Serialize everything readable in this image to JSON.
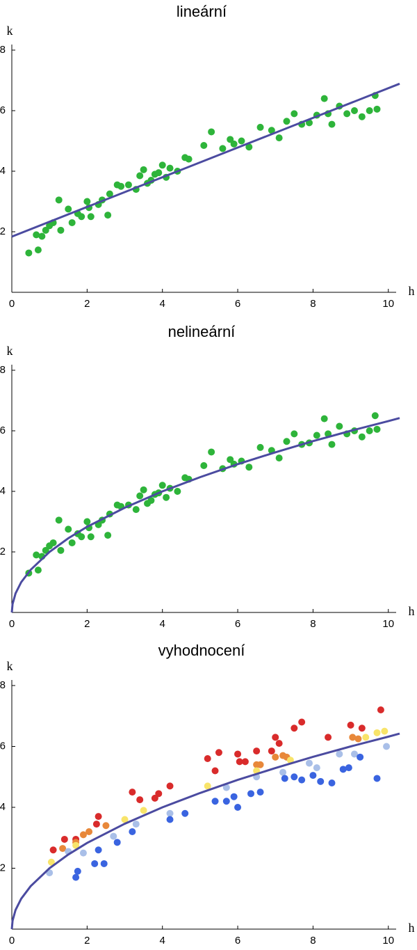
{
  "chart_data": [
    {
      "type": "scatter",
      "title": "lineární",
      "xlabel": "h",
      "ylabel": "k",
      "xlim": [
        0,
        10.3
      ],
      "ylim": [
        0,
        8
      ],
      "xticks": [
        0,
        2,
        4,
        6,
        8,
        10
      ],
      "yticks": [
        2,
        4,
        6,
        8
      ],
      "series": [
        {
          "type": "scatter",
          "color": "#2eb43a",
          "x": [
            0.45,
            0.65,
            0.7,
            0.8,
            0.9,
            1.0,
            1.1,
            1.25,
            1.3,
            1.5,
            1.6,
            1.75,
            1.85,
            2.0,
            2.05,
            2.1,
            2.3,
            2.4,
            2.55,
            2.6,
            2.8,
            2.9,
            3.1,
            3.3,
            3.4,
            3.5,
            3.6,
            3.7,
            3.8,
            3.9,
            4.0,
            4.1,
            4.2,
            4.4,
            4.6,
            4.7,
            5.1,
            5.3,
            5.6,
            5.8,
            5.9,
            6.1,
            6.3,
            6.6,
            6.9,
            7.1,
            7.3,
            7.5,
            7.7,
            7.9,
            8.1,
            8.3,
            8.4,
            8.5,
            8.7,
            8.9,
            9.1,
            9.3,
            9.5,
            9.65,
            9.7
          ],
          "values": [
            1.3,
            1.9,
            1.4,
            1.85,
            2.05,
            2.2,
            2.3,
            3.05,
            2.05,
            2.75,
            2.3,
            2.6,
            2.5,
            3.0,
            2.8,
            2.5,
            2.9,
            3.05,
            2.55,
            3.25,
            3.55,
            3.5,
            3.55,
            3.4,
            3.85,
            4.05,
            3.6,
            3.7,
            3.9,
            3.95,
            4.2,
            3.8,
            4.1,
            4.0,
            4.45,
            4.4,
            4.85,
            5.3,
            4.75,
            5.05,
            4.9,
            5.0,
            4.8,
            5.45,
            5.35,
            5.1,
            5.65,
            5.9,
            5.55,
            5.6,
            5.85,
            6.4,
            5.9,
            5.55,
            6.15,
            5.9,
            6.0,
            5.8,
            6.0,
            6.5,
            6.05
          ]
        },
        {
          "type": "line",
          "color": "#4b4ba0",
          "x": [
            0,
            10.3
          ],
          "values": [
            1.84,
            6.89
          ]
        }
      ]
    },
    {
      "type": "scatter",
      "title": "nelineární",
      "xlabel": "h",
      "ylabel": "k",
      "xlim": [
        0,
        10.3
      ],
      "ylim": [
        0,
        8
      ],
      "xticks": [
        0,
        2,
        4,
        6,
        8,
        10
      ],
      "yticks": [
        2,
        4,
        6,
        8
      ],
      "series": [
        {
          "type": "scatter",
          "color": "#2eb43a",
          "x": [
            0.45,
            0.65,
            0.7,
            0.8,
            0.9,
            1.0,
            1.1,
            1.25,
            1.3,
            1.5,
            1.6,
            1.75,
            1.85,
            2.0,
            2.05,
            2.1,
            2.3,
            2.4,
            2.55,
            2.6,
            2.8,
            2.9,
            3.1,
            3.3,
            3.4,
            3.5,
            3.6,
            3.7,
            3.8,
            3.9,
            4.0,
            4.1,
            4.2,
            4.4,
            4.6,
            4.7,
            5.1,
            5.3,
            5.6,
            5.8,
            5.9,
            6.1,
            6.3,
            6.6,
            6.9,
            7.1,
            7.3,
            7.5,
            7.7,
            7.9,
            8.1,
            8.3,
            8.4,
            8.5,
            8.7,
            8.9,
            9.1,
            9.3,
            9.5,
            9.65,
            9.7
          ],
          "values": [
            1.3,
            1.9,
            1.4,
            1.85,
            2.05,
            2.2,
            2.3,
            3.05,
            2.05,
            2.75,
            2.3,
            2.6,
            2.5,
            3.0,
            2.8,
            2.5,
            2.9,
            3.05,
            2.55,
            3.25,
            3.55,
            3.5,
            3.55,
            3.4,
            3.85,
            4.05,
            3.6,
            3.7,
            3.9,
            3.95,
            4.2,
            3.8,
            4.1,
            4.0,
            4.45,
            4.4,
            4.85,
            5.3,
            4.75,
            5.05,
            4.9,
            5.0,
            4.8,
            5.45,
            5.35,
            5.1,
            5.65,
            5.9,
            5.55,
            5.6,
            5.85,
            6.4,
            5.9,
            5.55,
            6.15,
            5.9,
            6.0,
            5.8,
            6.0,
            6.5,
            6.05
          ]
        },
        {
          "type": "line",
          "color": "#4b4ba0",
          "x": [
            0,
            0.02,
            0.1,
            0.25,
            0.5,
            1,
            1.5,
            2,
            3,
            4,
            5,
            6,
            7,
            8,
            9,
            10,
            10.3
          ],
          "values": [
            0,
            0.28,
            0.63,
            1,
            1.41,
            2,
            2.45,
            2.83,
            3.46,
            4,
            4.47,
            4.9,
            5.29,
            5.66,
            6,
            6.32,
            6.42
          ]
        }
      ]
    },
    {
      "type": "scatter",
      "title": "vyhodnocení",
      "xlabel": "h",
      "ylabel": "k",
      "xlim": [
        0,
        10.3
      ],
      "ylim": [
        0,
        8
      ],
      "xticks": [
        0,
        2,
        4,
        6,
        8,
        10
      ],
      "yticks": [
        2,
        4,
        6,
        8
      ],
      "series": [
        {
          "type": "scatter",
          "color": "#d92b2b",
          "x": [
            1.1,
            1.4,
            1.7,
            2.25,
            2.3,
            3.2,
            3.4,
            3.8,
            3.9,
            4.2,
            5.2,
            5.4,
            5.5,
            6.0,
            6.05,
            6.2,
            6.5,
            6.9,
            7.0,
            7.1,
            7.5,
            7.7,
            8.4,
            9.0,
            9.3,
            9.8
          ],
          "values": [
            2.6,
            2.95,
            2.95,
            3.45,
            3.7,
            4.5,
            4.25,
            4.3,
            4.45,
            4.7,
            5.6,
            5.2,
            5.8,
            5.75,
            5.5,
            5.5,
            5.85,
            5.85,
            6.3,
            6.1,
            6.6,
            6.8,
            6.3,
            6.7,
            6.6,
            7.2
          ]
        },
        {
          "type": "scatter",
          "color": "#e8883a",
          "x": [
            1.35,
            1.7,
            1.9,
            2.05,
            2.5,
            6.5,
            6.6,
            7.0,
            7.2,
            7.3,
            9.05,
            9.2
          ],
          "values": [
            2.65,
            2.85,
            3.1,
            3.2,
            3.4,
            5.4,
            5.4,
            5.65,
            5.7,
            5.65,
            6.3,
            6.25
          ]
        },
        {
          "type": "scatter",
          "color": "#f8e46a",
          "x": [
            1.05,
            1.7,
            3.0,
            3.5,
            5.2,
            6.5,
            7.4,
            9.4,
            9.7,
            9.9
          ],
          "values": [
            2.2,
            2.75,
            3.6,
            3.9,
            4.7,
            5.2,
            5.55,
            6.3,
            6.45,
            6.5
          ]
        },
        {
          "type": "scatter",
          "color": "#a9bfe8",
          "x": [
            1.0,
            1.5,
            1.9,
            2.7,
            3.3,
            4.2,
            5.7,
            6.5,
            7.2,
            7.9,
            8.1,
            8.7,
            9.1,
            9.95
          ],
          "values": [
            1.85,
            2.55,
            2.5,
            3.05,
            3.45,
            3.8,
            4.65,
            5.0,
            5.15,
            5.45,
            5.3,
            5.75,
            5.75,
            6.0
          ]
        },
        {
          "type": "scatter",
          "color": "#3a64e0",
          "x": [
            1.7,
            1.75,
            2.2,
            2.3,
            2.45,
            2.8,
            3.2,
            4.2,
            4.6,
            5.4,
            5.7,
            5.9,
            6.0,
            6.35,
            6.6,
            7.25,
            7.5,
            7.7,
            8.0,
            8.2,
            8.5,
            8.8,
            8.95,
            9.25,
            9.7
          ],
          "values": [
            1.7,
            1.9,
            2.15,
            2.6,
            2.15,
            2.85,
            3.2,
            3.6,
            3.8,
            4.2,
            4.2,
            4.35,
            4.0,
            4.45,
            4.5,
            4.95,
            5.0,
            4.9,
            5.05,
            4.85,
            4.8,
            5.25,
            5.3,
            5.65,
            4.95
          ]
        },
        {
          "type": "line",
          "color": "#4b4ba0",
          "x": [
            0,
            0.02,
            0.1,
            0.25,
            0.5,
            1,
            1.5,
            2,
            3,
            4,
            5,
            6,
            7,
            8,
            9,
            10,
            10.3
          ],
          "values": [
            0,
            0.28,
            0.63,
            1,
            1.41,
            2,
            2.45,
            2.83,
            3.46,
            4,
            4.47,
            4.9,
            5.29,
            5.66,
            6,
            6.32,
            6.42
          ]
        }
      ]
    }
  ]
}
